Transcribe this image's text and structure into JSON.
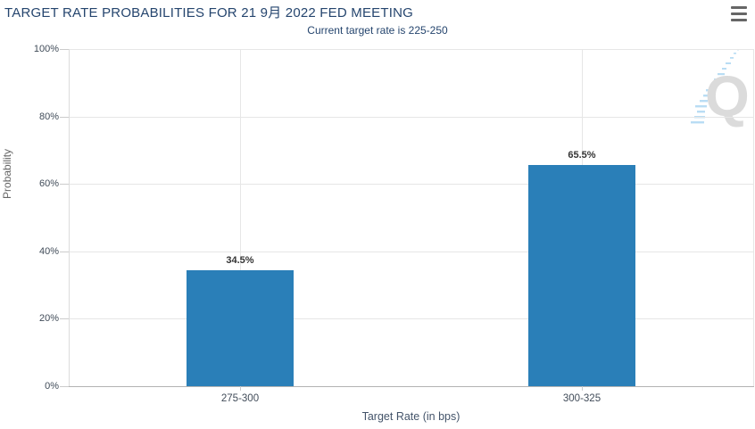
{
  "chart_data": {
    "type": "bar",
    "title": "TARGET RATE PROBABILITIES FOR 21 9月 2022 FED MEETING",
    "subtitle": "Current target rate is 225-250",
    "categories": [
      "275-300",
      "300-325"
    ],
    "values": [
      34.5,
      65.5
    ],
    "data_labels": [
      "34.5%",
      "65.5%"
    ],
    "xlabel": "Target Rate (in bps)",
    "ylabel": "Probability",
    "ylim": [
      0,
      100
    ],
    "yticks": [
      0,
      20,
      40,
      60,
      80,
      100
    ],
    "ytick_labels": [
      "0%",
      "20%",
      "40%",
      "60%",
      "80%",
      "100%"
    ],
    "grid": true,
    "legend_position": "none",
    "colors": {
      "bar": "#2a7fb8",
      "title_text": "#25456e",
      "gridline": "#e6e6e6",
      "axis_line": "#b3b3b3",
      "tick_label": "#414c59",
      "menu_icon": "#666666",
      "watermark_gray": "#dbdbdb",
      "watermark_blue": "#b9ddf4"
    }
  },
  "toolbar": {
    "menu_icon": "hamburger-menu-icon"
  },
  "watermark": {
    "letter": "Q"
  }
}
